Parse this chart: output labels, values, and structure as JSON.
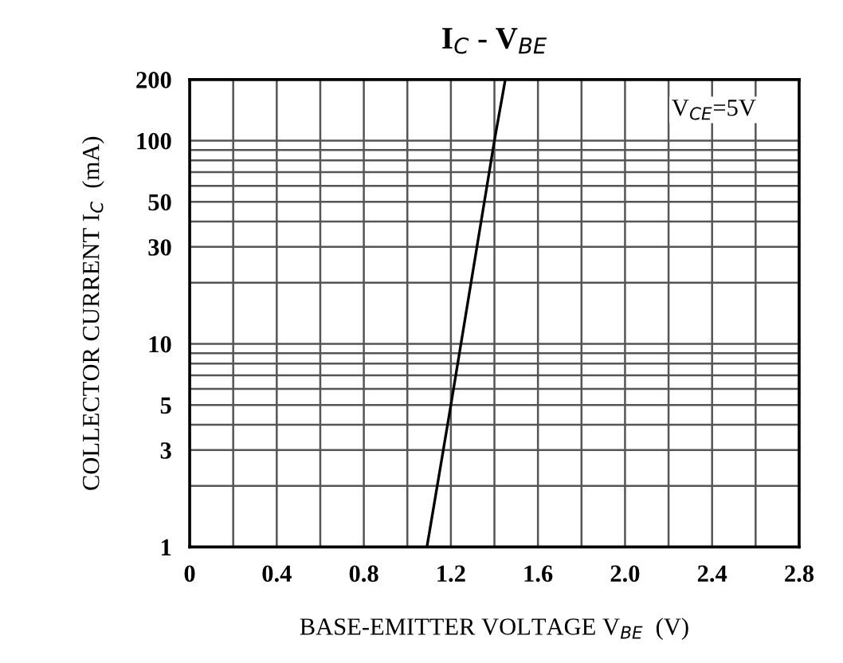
{
  "chart_data": {
    "type": "line",
    "title": "I$_{C}$ - V$_{BE}$",
    "xlabel": "BASE-EMITTER VOLTAGE V$_{BE}$  (V)",
    "ylabel": "COLLECTOR CURRENT I$_{C}$  (mA)",
    "annotations": [
      "V$_{CE}$=5V"
    ],
    "series": [
      {
        "color": "#000000",
        "x": [
          1.09,
          1.2,
          1.4,
          1.45
        ],
        "values": [
          1,
          5,
          100,
          200
        ]
      }
    ],
    "log": "y",
    "xlim": [
      0,
      2.8
    ],
    "ylim": [
      1,
      200
    ],
    "xticks": [
      0,
      {
        "value": 0.2,
        "label": null
      },
      0.4,
      {
        "value": 0.6,
        "label": null
      },
      0.8,
      {
        "value": 1.0,
        "label": null
      },
      1.2,
      {
        "value": 1.4,
        "label": null
      },
      1.6,
      {
        "value": 1.8,
        "label": null
      },
      {
        "value": 2.0,
        "label": "2.0"
      },
      {
        "value": 2.2,
        "label": null
      },
      2.4,
      {
        "value": 2.6,
        "label": null
      },
      2.8
    ],
    "yticks": [
      1,
      {
        "value": 2,
        "label": null
      },
      3,
      {
        "value": 4,
        "label": null
      },
      5,
      {
        "value": 6,
        "label": null
      },
      {
        "value": 7,
        "label": null
      },
      {
        "value": 8,
        "label": null
      },
      {
        "value": 9,
        "label": null
      },
      10,
      {
        "value": 20,
        "label": null
      },
      30,
      {
        "value": 40,
        "label": null
      },
      50,
      {
        "value": 60,
        "label": null
      },
      {
        "value": 70,
        "label": null
      },
      {
        "value": 80,
        "label": null
      },
      {
        "value": 90,
        "label": null
      },
      100,
      200
    ],
    "grid": true,
    "marker": "none",
    "line_style": "solid"
  }
}
